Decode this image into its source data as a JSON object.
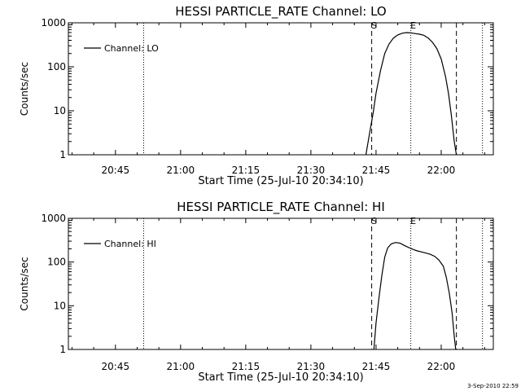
{
  "footer": {
    "date": "3-Sep-2010 22:59"
  },
  "chart_data": [
    {
      "type": "line",
      "title": "HESSI PARTICLE_RATE Channel: LO",
      "xlabel": "Start Time (25-Jul-10 20:34:10)",
      "ylabel": "Counts/sec",
      "yscale": "log",
      "ylim": [
        1,
        1000
      ],
      "xlim": [
        "20:34:10",
        "22:12:00"
      ],
      "xticks": [
        "20:45",
        "21:00",
        "21:15",
        "21:30",
        "21:45",
        "22:00"
      ],
      "yticks": [
        "1",
        "10",
        "100",
        "1000"
      ],
      "legend": {
        "label": "Channel: LO",
        "position": "top-left"
      },
      "markers": [
        {
          "label": "S",
          "time": "21:44:00",
          "style": "dashed"
        },
        {
          "label": "E",
          "time": "21:53:00",
          "style": "dotted"
        }
      ],
      "dashed_lines": [
        "21:44:00",
        "22:03:30"
      ],
      "dotted_lines": [
        "20:51:30",
        "21:53:00",
        "22:09:30"
      ],
      "series": [
        {
          "name": "Channel: LO",
          "times": [
            "21:42:40",
            "21:43:30",
            "21:44:20",
            "21:45:00",
            "21:46:00",
            "21:47:00",
            "21:48:00",
            "21:49:00",
            "21:50:00",
            "21:51:00",
            "21:52:00",
            "21:53:00",
            "21:54:00",
            "21:55:00",
            "21:56:00",
            "21:57:00",
            "21:58:00",
            "21:59:00",
            "22:00:00",
            "22:01:00",
            "22:01:40",
            "22:02:20",
            "22:03:00",
            "22:03:30"
          ],
          "values": [
            1,
            3,
            9,
            25,
            80,
            200,
            330,
            450,
            530,
            580,
            600,
            590,
            570,
            550,
            520,
            450,
            360,
            260,
            150,
            60,
            25,
            8,
            2,
            1
          ]
        }
      ]
    },
    {
      "type": "line",
      "title": "HESSI PARTICLE_RATE Channel: HI",
      "xlabel": "Start Time (25-Jul-10 20:34:10)",
      "ylabel": "Counts/sec",
      "yscale": "log",
      "ylim": [
        1,
        1000
      ],
      "xlim": [
        "20:34:10",
        "22:12:00"
      ],
      "xticks": [
        "20:45",
        "21:00",
        "21:15",
        "21:30",
        "21:45",
        "22:00"
      ],
      "yticks": [
        "1",
        "10",
        "100",
        "1000"
      ],
      "legend": {
        "label": "Channel: HI",
        "position": "top-left"
      },
      "markers": [
        {
          "label": "S",
          "time": "21:44:00",
          "style": "dashed"
        },
        {
          "label": "E",
          "time": "21:53:00",
          "style": "dotted"
        }
      ],
      "dashed_lines": [
        "21:44:00",
        "22:03:30"
      ],
      "dotted_lines": [
        "20:51:30",
        "21:53:00",
        "22:09:30"
      ],
      "series": [
        {
          "name": "Channel: HI",
          "times": [
            "21:44:30",
            "21:45:00",
            "21:45:40",
            "21:46:20",
            "21:47:00",
            "21:47:40",
            "21:48:30",
            "21:49:30",
            "21:50:30",
            "21:51:30",
            "21:52:30",
            "21:53:30",
            "21:54:30",
            "21:55:30",
            "21:56:30",
            "21:57:30",
            "21:58:30",
            "21:59:30",
            "22:00:30",
            "22:01:10",
            "22:01:50",
            "22:02:30",
            "22:03:00",
            "22:03:20"
          ],
          "values": [
            1,
            4,
            15,
            50,
            130,
            210,
            260,
            280,
            270,
            240,
            215,
            195,
            180,
            170,
            160,
            150,
            135,
            110,
            80,
            45,
            20,
            7,
            2,
            1
          ]
        }
      ]
    }
  ]
}
